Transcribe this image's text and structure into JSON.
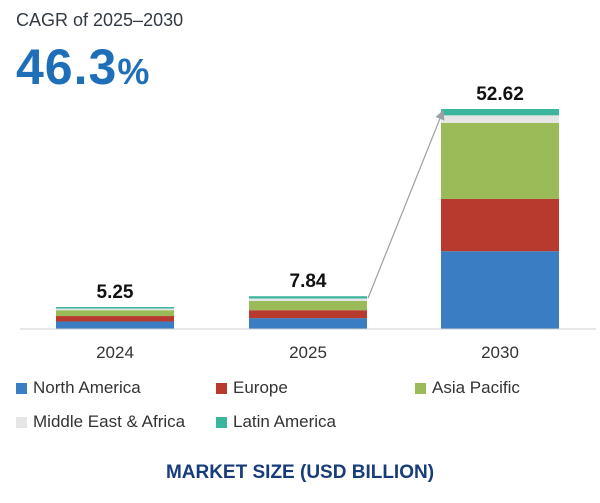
{
  "cagr": {
    "label": "CAGR of 2025–2030",
    "value": "46.3",
    "unit": "%"
  },
  "colors": {
    "North America": "#3a7dc2",
    "Europe": "#b83a2f",
    "Asia Pacific": "#9bbb59",
    "Middle East & Africa": "#e6e6e6",
    "Latin America": "#3bb59c"
  },
  "chart_data": {
    "type": "bar",
    "stacked": true,
    "title": "",
    "xlabel": "MARKET SIZE (USD BILLION)",
    "ylabel": "",
    "categories": [
      "2024",
      "2025",
      "2030"
    ],
    "totals": [
      "5.25",
      "7.84",
      "52.62"
    ],
    "series": [
      {
        "name": "North America",
        "values": [
          1.8,
          2.6,
          18.6
        ]
      },
      {
        "name": "Europe",
        "values": [
          1.3,
          1.9,
          12.5
        ]
      },
      {
        "name": "Asia Pacific",
        "values": [
          1.4,
          2.2,
          18.2
        ]
      },
      {
        "name": "Middle East & Africa",
        "values": [
          0.4,
          0.6,
          1.8
        ]
      },
      {
        "name": "Latin America",
        "values": [
          0.35,
          0.54,
          1.52
        ]
      }
    ],
    "ylim": [
      0,
      55
    ],
    "annotation": "arrow from 2025 bar top to 2030 bar top"
  }
}
